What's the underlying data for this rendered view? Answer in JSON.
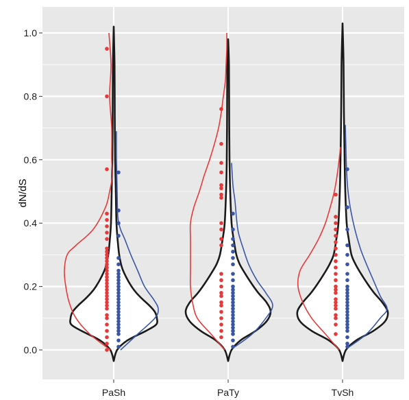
{
  "chart_data": {
    "type": "violin",
    "title": "",
    "xlabel": "",
    "ylabel": "dN/dS",
    "ylim": [
      -0.06,
      1.08
    ],
    "yticks": [
      "0.0",
      "0.2",
      "0.4",
      "0.6",
      "0.8",
      "1.0"
    ],
    "categories": [
      "PaSh",
      "PaTy",
      "TvSh"
    ],
    "grid": true,
    "colors": {
      "panel": "#e8e8e8",
      "grid": "#ffffff",
      "outline": "#1a1a1a",
      "series_a": "#e8393a",
      "series_b": "#3a55a4"
    },
    "violins": [
      {
        "category": "PaSh",
        "profile": [
          [
            -0.035,
            0
          ],
          [
            0.0,
            5
          ],
          [
            0.03,
            20
          ],
          [
            0.06,
            47
          ],
          [
            0.08,
            62
          ],
          [
            0.1,
            63
          ],
          [
            0.12,
            60
          ],
          [
            0.14,
            52
          ],
          [
            0.16,
            42
          ],
          [
            0.18,
            33
          ],
          [
            0.2,
            26
          ],
          [
            0.23,
            18
          ],
          [
            0.26,
            12
          ],
          [
            0.3,
            8
          ],
          [
            0.34,
            6
          ],
          [
            0.4,
            4
          ],
          [
            0.5,
            3
          ],
          [
            0.6,
            2
          ],
          [
            0.75,
            1.5
          ],
          [
            0.9,
            1.2
          ],
          [
            1.02,
            0
          ]
        ],
        "series_a_density": [
          [
            0.0,
            5
          ],
          [
            0.05,
            35
          ],
          [
            0.1,
            55
          ],
          [
            0.15,
            65
          ],
          [
            0.2,
            70
          ],
          [
            0.25,
            72
          ],
          [
            0.3,
            68
          ],
          [
            0.33,
            55
          ],
          [
            0.38,
            30
          ],
          [
            0.45,
            12
          ],
          [
            0.5,
            6
          ],
          [
            0.55,
            2
          ],
          [
            0.6,
            3
          ],
          [
            0.7,
            3
          ],
          [
            0.8,
            6
          ],
          [
            0.9,
            4
          ],
          [
            1.0,
            7
          ]
        ],
        "series_b_density": [
          [
            0.0,
            10
          ],
          [
            0.05,
            35
          ],
          [
            0.1,
            60
          ],
          [
            0.13,
            65
          ],
          [
            0.16,
            58
          ],
          [
            0.2,
            45
          ],
          [
            0.25,
            35
          ],
          [
            0.3,
            25
          ],
          [
            0.35,
            16
          ],
          [
            0.38,
            10
          ],
          [
            0.42,
            6
          ],
          [
            0.5,
            5
          ],
          [
            0.6,
            4
          ],
          [
            0.69,
            4
          ]
        ],
        "series_a_points": [
          0.0,
          0.02,
          0.04,
          0.06,
          0.08,
          0.1,
          0.11,
          0.13,
          0.14,
          0.15,
          0.16,
          0.17,
          0.18,
          0.19,
          0.2,
          0.21,
          0.22,
          0.23,
          0.24,
          0.25,
          0.26,
          0.27,
          0.28,
          0.29,
          0.3,
          0.31,
          0.32,
          0.35,
          0.37,
          0.39,
          0.41,
          0.43,
          0.57,
          0.8,
          0.95
        ],
        "series_b_points": [
          0.01,
          0.03,
          0.05,
          0.06,
          0.07,
          0.08,
          0.09,
          0.1,
          0.11,
          0.12,
          0.13,
          0.14,
          0.15,
          0.16,
          0.17,
          0.18,
          0.19,
          0.2,
          0.21,
          0.22,
          0.23,
          0.24,
          0.25,
          0.27,
          0.29,
          0.36,
          0.4,
          0.44,
          0.56
        ]
      },
      {
        "category": "PaTy",
        "profile": [
          [
            -0.035,
            0
          ],
          [
            0.0,
            5
          ],
          [
            0.03,
            18
          ],
          [
            0.06,
            40
          ],
          [
            0.09,
            56
          ],
          [
            0.12,
            62
          ],
          [
            0.15,
            56
          ],
          [
            0.18,
            44
          ],
          [
            0.21,
            34
          ],
          [
            0.24,
            25
          ],
          [
            0.27,
            17
          ],
          [
            0.3,
            12
          ],
          [
            0.35,
            8
          ],
          [
            0.4,
            5
          ],
          [
            0.5,
            3
          ],
          [
            0.6,
            2
          ],
          [
            0.75,
            1.5
          ],
          [
            0.9,
            1.2
          ],
          [
            0.98,
            0
          ]
        ],
        "series_a_density": [
          [
            0.0,
            5
          ],
          [
            0.05,
            25
          ],
          [
            0.1,
            45
          ],
          [
            0.15,
            52
          ],
          [
            0.2,
            55
          ],
          [
            0.25,
            55
          ],
          [
            0.3,
            55
          ],
          [
            0.35,
            55
          ],
          [
            0.4,
            55
          ],
          [
            0.45,
            50
          ],
          [
            0.5,
            42
          ],
          [
            0.55,
            35
          ],
          [
            0.6,
            27
          ],
          [
            0.65,
            20
          ],
          [
            0.7,
            14
          ],
          [
            0.75,
            10
          ],
          [
            0.8,
            7
          ],
          [
            0.85,
            4
          ],
          [
            0.9,
            3
          ],
          [
            0.95,
            2
          ],
          [
            1.0,
            2
          ]
        ],
        "series_b_density": [
          [
            0.01,
            10
          ],
          [
            0.05,
            35
          ],
          [
            0.1,
            55
          ],
          [
            0.14,
            65
          ],
          [
            0.18,
            55
          ],
          [
            0.22,
            42
          ],
          [
            0.27,
            30
          ],
          [
            0.32,
            22
          ],
          [
            0.37,
            15
          ],
          [
            0.42,
            12
          ],
          [
            0.47,
            10
          ],
          [
            0.52,
            7
          ],
          [
            0.59,
            5
          ]
        ],
        "series_a_points": [
          0.04,
          0.06,
          0.08,
          0.1,
          0.12,
          0.14,
          0.15,
          0.17,
          0.18,
          0.2,
          0.22,
          0.24,
          0.33,
          0.35,
          0.38,
          0.4,
          0.48,
          0.49,
          0.51,
          0.52,
          0.56,
          0.59,
          0.65,
          0.76
        ],
        "series_b_points": [
          0.01,
          0.03,
          0.05,
          0.06,
          0.07,
          0.08,
          0.09,
          0.1,
          0.11,
          0.12,
          0.13,
          0.14,
          0.15,
          0.16,
          0.17,
          0.18,
          0.19,
          0.2,
          0.22,
          0.24,
          0.27,
          0.29,
          0.31,
          0.33,
          0.35,
          0.38,
          0.43
        ]
      },
      {
        "category": "TvSh",
        "profile": [
          [
            -0.035,
            0
          ],
          [
            0.0,
            5
          ],
          [
            0.03,
            20
          ],
          [
            0.06,
            45
          ],
          [
            0.09,
            62
          ],
          [
            0.12,
            66
          ],
          [
            0.15,
            58
          ],
          [
            0.18,
            46
          ],
          [
            0.21,
            36
          ],
          [
            0.24,
            27
          ],
          [
            0.27,
            19
          ],
          [
            0.3,
            13
          ],
          [
            0.35,
            9
          ],
          [
            0.4,
            6
          ],
          [
            0.5,
            4
          ],
          [
            0.6,
            3
          ],
          [
            0.75,
            2
          ],
          [
            0.9,
            1.5
          ],
          [
            1.03,
            0
          ]
        ],
        "series_a_density": [
          [
            0.0,
            5
          ],
          [
            0.05,
            25
          ],
          [
            0.1,
            45
          ],
          [
            0.15,
            58
          ],
          [
            0.2,
            65
          ],
          [
            0.25,
            62
          ],
          [
            0.3,
            48
          ],
          [
            0.35,
            35
          ],
          [
            0.4,
            25
          ],
          [
            0.45,
            18
          ],
          [
            0.5,
            12
          ],
          [
            0.55,
            8
          ],
          [
            0.6,
            5
          ],
          [
            0.64,
            3
          ]
        ],
        "series_b_density": [
          [
            0.01,
            10
          ],
          [
            0.05,
            35
          ],
          [
            0.1,
            55
          ],
          [
            0.13,
            65
          ],
          [
            0.17,
            55
          ],
          [
            0.22,
            45
          ],
          [
            0.27,
            35
          ],
          [
            0.32,
            26
          ],
          [
            0.38,
            18
          ],
          [
            0.44,
            12
          ],
          [
            0.5,
            8
          ],
          [
            0.56,
            6
          ],
          [
            0.63,
            5
          ],
          [
            0.71,
            4
          ]
        ],
        "series_a_points": [
          0.05,
          0.08,
          0.1,
          0.11,
          0.13,
          0.14,
          0.15,
          0.16,
          0.18,
          0.19,
          0.2,
          0.22,
          0.24,
          0.26,
          0.28,
          0.3,
          0.32,
          0.34,
          0.36,
          0.38,
          0.4,
          0.42,
          0.49
        ],
        "series_b_points": [
          0.01,
          0.02,
          0.04,
          0.06,
          0.07,
          0.08,
          0.09,
          0.1,
          0.11,
          0.12,
          0.13,
          0.14,
          0.15,
          0.16,
          0.17,
          0.18,
          0.19,
          0.2,
          0.22,
          0.24,
          0.27,
          0.3,
          0.33,
          0.38,
          0.45,
          0.57
        ]
      }
    ]
  }
}
